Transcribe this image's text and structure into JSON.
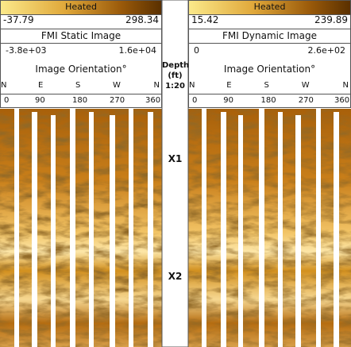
{
  "panels": [
    {
      "colorbar": {
        "label": "Heated",
        "min": -37.79,
        "max": 298.34
      },
      "title": "FMI Static Image",
      "scale_min": "-3.8e+03",
      "scale_max": "1.6e+04",
      "orientation_label": "Image Orientation°",
      "directions": [
        "N",
        "E",
        "S",
        "W",
        "N"
      ],
      "degrees": [
        0,
        90,
        180,
        270,
        360
      ]
    },
    {
      "colorbar": {
        "label": "Heated",
        "min": 15.42,
        "max": 239.89
      },
      "title": "FMI Dynamic Image",
      "scale_min": 0,
      "scale_max": "2.6e+02",
      "orientation_label": "Image Orientation°",
      "directions": [
        "N",
        "E",
        "S",
        "W",
        "N"
      ],
      "degrees": [
        0,
        90,
        180,
        270,
        360
      ]
    }
  ],
  "depth_header": [
    "Depth",
    "(ft)",
    "1:20"
  ],
  "markers": [
    "X1",
    "X2"
  ]
}
